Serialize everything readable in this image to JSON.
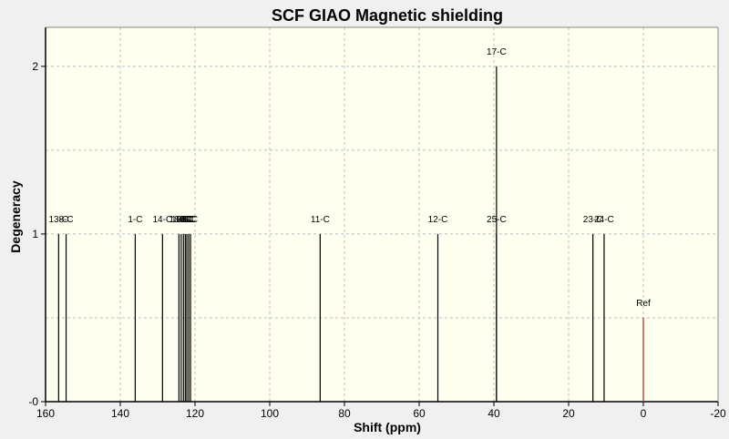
{
  "chart_data": {
    "type": "bar",
    "title": "SCF GIAO Magnetic shielding",
    "xlabel": "Shift (ppm)",
    "ylabel": "Degeneracy",
    "xlim": [
      160,
      -20
    ],
    "ylim": [
      0,
      2.2
    ],
    "x_ticks": [
      160,
      140,
      120,
      100,
      80,
      60,
      40,
      20,
      0,
      -20
    ],
    "y_ticks": [
      0,
      1,
      2
    ],
    "y_tick_labels": [
      "-0",
      "1",
      "2"
    ],
    "grid": true,
    "background_color": "#fffff0",
    "grid_color": "#bfbfbf",
    "peak_color": "#000000",
    "reference_color": "#c0504d",
    "peaks": [
      {
        "label": "13-C",
        "x": 156.5,
        "y": 1
      },
      {
        "label": "8-C",
        "x": 154.5,
        "y": 1
      },
      {
        "label": "1-C",
        "x": 136.0,
        "y": 1
      },
      {
        "label": "14-C",
        "x": 128.7,
        "y": 1
      },
      {
        "label": "18-C",
        "x": 124.3,
        "y": 1
      },
      {
        "label": "10-C",
        "x": 123.7,
        "y": 1
      },
      {
        "label": "3-C",
        "x": 123.1,
        "y": 1
      },
      {
        "label": "4-C",
        "x": 122.6,
        "y": 1
      },
      {
        "label": "9-C",
        "x": 122.2,
        "y": 1
      },
      {
        "label": "5-C",
        "x": 121.7,
        "y": 1
      },
      {
        "label": "6-C",
        "x": 121.2,
        "y": 1
      },
      {
        "label": "11-C",
        "x": 86.5,
        "y": 1
      },
      {
        "label": "12-C",
        "x": 55.0,
        "y": 1
      },
      {
        "label": "17-C",
        "x": 39.3,
        "y": 2
      },
      {
        "label": "25-C",
        "x": 39.3,
        "y": 1
      },
      {
        "label": "23-C",
        "x": 13.5,
        "y": 1
      },
      {
        "label": "24-C",
        "x": 10.5,
        "y": 1
      }
    ],
    "reference": {
      "label": "Ref",
      "x": 0,
      "y": 0.5
    }
  }
}
